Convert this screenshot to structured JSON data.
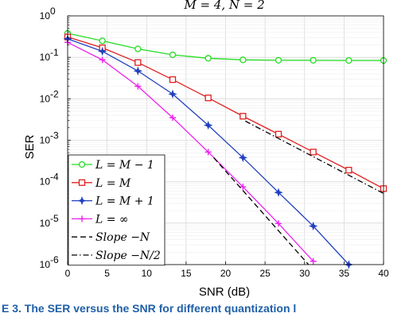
{
  "caption": "E 3. The SER versus the SNR for different quantization l",
  "chart_data": {
    "type": "line",
    "title": "M = 4,  N = 2",
    "xlabel": "SNR (dB)",
    "ylabel": "SER",
    "xlim": [
      0,
      40
    ],
    "ylim_log10": [
      -6,
      0
    ],
    "yscale": "log",
    "grid": true,
    "legend_position": "bottom-left",
    "x_ticks": [
      0,
      5,
      10,
      15,
      20,
      25,
      30,
      35,
      40
    ],
    "x_tick_labels": [
      "0",
      "5",
      "10",
      "15",
      "20",
      "25",
      "30",
      "35",
      "40"
    ],
    "y_ticks": [
      1,
      0.1,
      0.01,
      0.001,
      0.0001,
      1e-05,
      1e-06
    ],
    "y_tick_labels": [
      {
        "base": "10",
        "exp": "0"
      },
      {
        "base": "10",
        "exp": "-1"
      },
      {
        "base": "10",
        "exp": "-2"
      },
      {
        "base": "10",
        "exp": "-3"
      },
      {
        "base": "10",
        "exp": "-4"
      },
      {
        "base": "10",
        "exp": "-5"
      },
      {
        "base": "10",
        "exp": "-6"
      }
    ],
    "series": [
      {
        "name": "L = M − 1",
        "color": "#22dd22",
        "marker": "circle",
        "dash": "solid",
        "x": [
          0,
          4.4,
          8.9,
          13.3,
          17.8,
          22.2,
          26.7,
          31.1,
          35.6,
          40
        ],
        "y": [
          0.38,
          0.25,
          0.16,
          0.115,
          0.095,
          0.087,
          0.085,
          0.085,
          0.084,
          0.084
        ]
      },
      {
        "name": "L = M",
        "color": "#e02020",
        "marker": "square",
        "dash": "solid",
        "x": [
          0,
          4.4,
          8.9,
          13.3,
          17.8,
          22.2,
          26.7,
          31.1,
          35.6,
          40
        ],
        "y": [
          0.31,
          0.17,
          0.075,
          0.029,
          0.0105,
          0.0038,
          0.0014,
          0.00052,
          0.00019,
          6.8e-05
        ]
      },
      {
        "name": "L = M + 1",
        "color": "#2040c0",
        "marker": "star",
        "dash": "solid",
        "x": [
          0,
          4.4,
          8.9,
          13.3,
          17.8,
          22.2,
          26.7,
          31.1,
          35.6
        ],
        "y": [
          0.28,
          0.14,
          0.047,
          0.013,
          0.0023,
          0.00038,
          5.5e-05,
          8.5e-06,
          1e-06
        ]
      },
      {
        "name": "L = ∞",
        "color": "#ee22ee",
        "marker": "plus",
        "dash": "solid",
        "x": [
          0,
          4.4,
          8.9,
          13.3,
          17.8,
          22.2,
          26.7,
          31.1
        ],
        "y": [
          0.23,
          0.087,
          0.02,
          0.0035,
          0.00052,
          7.5e-05,
          9.8e-06,
          1.2e-06
        ]
      },
      {
        "name": "Slope −N",
        "color": "#000000",
        "marker": "none",
        "dash": "dashed",
        "x": [
          18.5,
          30.5
        ],
        "y": [
          0.00038,
          1e-06
        ]
      },
      {
        "name": "Slope −N/2",
        "color": "#000000",
        "marker": "none",
        "dash": "dashdot",
        "x": [
          22.5,
          40
        ],
        "y": [
          0.0029,
          5.2e-05
        ]
      }
    ]
  }
}
